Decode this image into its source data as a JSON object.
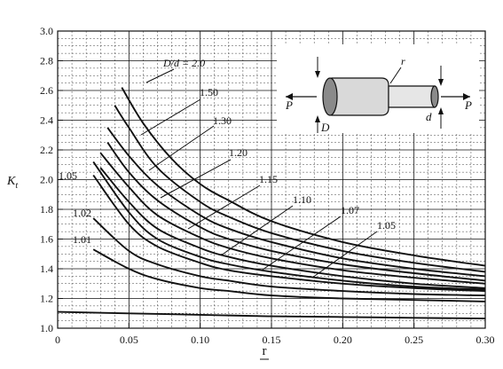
{
  "chart_data": {
    "type": "line",
    "title": "",
    "xlabel": "r",
    "ylabel": "K_t",
    "xlim": [
      0,
      0.3
    ],
    "ylim": [
      1.0,
      3.0
    ],
    "xticks": [
      0,
      0.05,
      0.1,
      0.15,
      0.2,
      0.25,
      0.3
    ],
    "xtick_labels": [
      "0",
      "0.05",
      "0.10",
      "0.15",
      "0.20",
      "0.25",
      "0.30"
    ],
    "yticks": [
      1.0,
      1.2,
      1.4,
      1.6,
      1.8,
      2.0,
      2.2,
      2.4,
      2.6,
      2.8,
      3.0
    ],
    "ytick_labels": [
      "1.0",
      "1.2",
      "1.4",
      "1.6",
      "1.8",
      "2.0",
      "2.2",
      "2.4",
      "2.6",
      "2.8",
      "3.0"
    ],
    "grid": true,
    "series": [
      {
        "name": "D/d = 2.0",
        "x": [
          0.045,
          0.06,
          0.08,
          0.1,
          0.12,
          0.15,
          0.2,
          0.25,
          0.3
        ],
        "y": [
          2.62,
          2.38,
          2.14,
          1.97,
          1.86,
          1.72,
          1.58,
          1.49,
          1.42
        ]
      },
      {
        "name": "1.50",
        "x": [
          0.04,
          0.05,
          0.07,
          0.1,
          0.12,
          0.15,
          0.2,
          0.25,
          0.3
        ],
        "y": [
          2.5,
          2.35,
          2.08,
          1.85,
          1.75,
          1.64,
          1.52,
          1.44,
          1.38
        ]
      },
      {
        "name": "1.30",
        "x": [
          0.035,
          0.05,
          0.07,
          0.1,
          0.12,
          0.15,
          0.2,
          0.25,
          0.3
        ],
        "y": [
          2.35,
          2.16,
          1.96,
          1.76,
          1.67,
          1.58,
          1.47,
          1.4,
          1.35
        ]
      },
      {
        "name": "1.20",
        "x": [
          0.035,
          0.05,
          0.07,
          0.1,
          0.12,
          0.15,
          0.2,
          0.25,
          0.3
        ],
        "y": [
          2.25,
          2.05,
          1.86,
          1.68,
          1.6,
          1.52,
          1.43,
          1.37,
          1.32
        ]
      },
      {
        "name": "1.15",
        "x": [
          0.03,
          0.05,
          0.07,
          0.1,
          0.12,
          0.15,
          0.2,
          0.25,
          0.3
        ],
        "y": [
          2.18,
          1.95,
          1.76,
          1.61,
          1.54,
          1.47,
          1.39,
          1.34,
          1.3
        ]
      },
      {
        "name": "1.10",
        "x": [
          0.03,
          0.05,
          0.07,
          0.1,
          0.12,
          0.15,
          0.2,
          0.25,
          0.3
        ],
        "y": [
          2.08,
          1.85,
          1.67,
          1.54,
          1.48,
          1.42,
          1.35,
          1.3,
          1.27
        ]
      },
      {
        "name": "1.07",
        "x": [
          0.025,
          0.05,
          0.07,
          0.1,
          0.12,
          0.15,
          0.2,
          0.25,
          0.3
        ],
        "y": [
          2.12,
          1.78,
          1.6,
          1.48,
          1.43,
          1.38,
          1.32,
          1.28,
          1.26
        ]
      },
      {
        "name": "1.05",
        "x": [
          0.025,
          0.05,
          0.07,
          0.1,
          0.12,
          0.15,
          0.2,
          0.25,
          0.3
        ],
        "y": [
          2.03,
          1.7,
          1.55,
          1.44,
          1.39,
          1.35,
          1.3,
          1.27,
          1.25
        ]
      },
      {
        "name": "1.02",
        "x": [
          0.025,
          0.05,
          0.07,
          0.1,
          0.12,
          0.15,
          0.2,
          0.25,
          0.3
        ],
        "y": [
          1.74,
          1.52,
          1.43,
          1.35,
          1.32,
          1.28,
          1.25,
          1.23,
          1.22
        ]
      },
      {
        "name": "1.01",
        "x": [
          0.025,
          0.05,
          0.07,
          0.1,
          0.12,
          0.15,
          0.2,
          0.25,
          0.3
        ],
        "y": [
          1.53,
          1.4,
          1.33,
          1.27,
          1.25,
          1.22,
          1.2,
          1.19,
          1.18
        ]
      },
      {
        "name": "",
        "x": [
          0.0,
          0.05,
          0.1,
          0.15,
          0.2,
          0.25,
          0.3
        ],
        "y": [
          1.11,
          1.1,
          1.09,
          1.08,
          1.075,
          1.07,
          1.065
        ]
      }
    ],
    "curve_labels": [
      {
        "text": "D/d = 2.0",
        "series": 0
      },
      {
        "text": "1.50",
        "series": 1
      },
      {
        "text": "1.30",
        "series": 2
      },
      {
        "text": "1.20",
        "series": 3
      },
      {
        "text": "1.15",
        "series": 4
      },
      {
        "text": "1.10",
        "series": 5
      },
      {
        "text": "1.07",
        "series": 6
      },
      {
        "text": "1.05",
        "series": 7
      },
      {
        "text": "1.05",
        "series": 7
      },
      {
        "text": "1.02",
        "series": 8
      },
      {
        "text": "1.01",
        "series": 9
      }
    ],
    "inset": {
      "labels": {
        "r": "r",
        "P_left": "P",
        "P_right": "P",
        "D": "D",
        "d": "d"
      }
    }
  }
}
